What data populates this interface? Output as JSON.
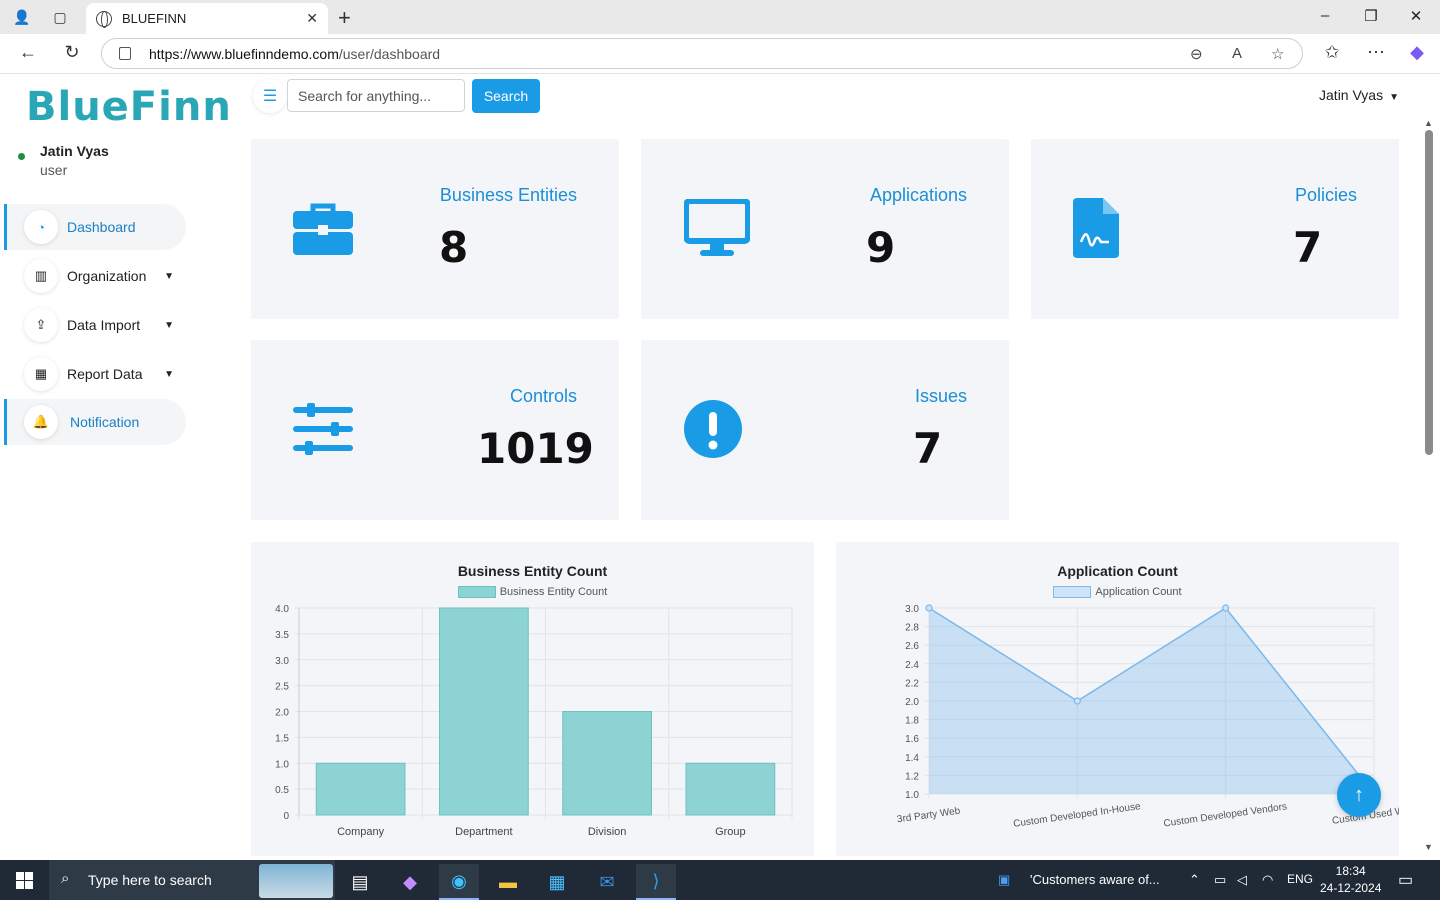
{
  "browser": {
    "tab_title": "BLUEFINN",
    "url_host": "https://www.bluefinndemo.com",
    "url_path": "/user/dashboard"
  },
  "sidebar": {
    "logo": "BlueFinn",
    "user_name": "Jatin Vyas",
    "user_role": "user",
    "items": [
      {
        "label": "Dashboard",
        "icon": "gauge-icon"
      },
      {
        "label": "Organization",
        "icon": "building-icon"
      },
      {
        "label": "Data Import",
        "icon": "upload-icon"
      },
      {
        "label": "Report Data",
        "icon": "chart-icon"
      },
      {
        "label": "Notification",
        "icon": "bell-icon"
      }
    ]
  },
  "header": {
    "search_placeholder": "Search for anything...",
    "search_button": "Search",
    "user_menu": "Jatin Vyas"
  },
  "cards": [
    {
      "label": "Business Entities",
      "value": "8",
      "icon": "briefcase-icon"
    },
    {
      "label": "Applications",
      "value": "9",
      "icon": "monitor-icon"
    },
    {
      "label": "Policies",
      "value": "7",
      "icon": "signed-document-icon"
    },
    {
      "label": "Controls",
      "value": "1019",
      "icon": "sliders-icon"
    },
    {
      "label": "Issues",
      "value": "7",
      "icon": "exclamation-icon"
    }
  ],
  "chart_data": [
    {
      "type": "bar",
      "title": "Business Entity Count",
      "categories": [
        "Company",
        "Department",
        "Division",
        "Group"
      ],
      "series": [
        {
          "name": "Business Entity Count",
          "values": [
            1,
            4,
            2,
            1
          ]
        }
      ],
      "ylim": [
        0,
        4
      ],
      "yticks": [
        "0",
        "0.5",
        "1.0",
        "1.5",
        "2.0",
        "2.5",
        "3.0",
        "3.5",
        "4.0"
      ],
      "grid": true,
      "legend": "top",
      "color": "#8dd3d3"
    },
    {
      "type": "area",
      "title": "Application Count",
      "categories": [
        "3rd Party Web",
        "Custom Developed In-House",
        "Custom Developed Vendors",
        "Custom Used Web"
      ],
      "series": [
        {
          "name": "Application Count",
          "values": [
            3,
            2,
            3,
            1
          ]
        }
      ],
      "ylim": [
        1,
        3
      ],
      "yticks": [
        "1.0",
        "1.2",
        "1.4",
        "1.6",
        "1.8",
        "2.0",
        "2.2",
        "2.4",
        "2.6",
        "2.8",
        "3.0"
      ],
      "grid": true,
      "legend": "top",
      "color": "#7ab8ea"
    }
  ],
  "taskbar": {
    "search_text": "Type here to search",
    "news": "'Customers aware of...",
    "lang": "ENG",
    "time": "18:34",
    "date": "24-12-2024"
  }
}
